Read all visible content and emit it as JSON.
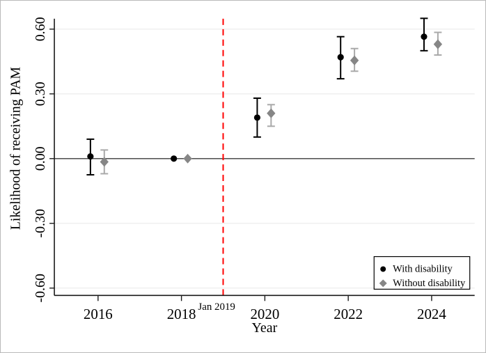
{
  "chart_data": {
    "type": "scatter",
    "title": "",
    "xlabel": "Year",
    "ylabel": "Likelihood of receiving PAM",
    "x_axis": {
      "title": "Year",
      "ticks": [
        {
          "year": 2016,
          "label": "2016"
        },
        {
          "year": 2018,
          "label": "2018"
        },
        {
          "year": 2020,
          "label": "2020"
        },
        {
          "year": 2022,
          "label": "2022"
        },
        {
          "year": 2024,
          "label": "2024"
        }
      ],
      "range": [
        2014.95,
        2025.05
      ]
    },
    "y_axis": {
      "title": "Likelihood of receiving PAM",
      "zero_line": true,
      "ticks": [
        {
          "value": 0.6,
          "label": "0.60"
        },
        {
          "value": 0.3,
          "label": "0.30"
        },
        {
          "value": 0.0,
          "label": "0.00"
        },
        {
          "value": -0.3,
          "label": "-0.30"
        },
        {
          "value": -0.6,
          "label": "-0.60"
        }
      ],
      "range": [
        -0.64,
        0.65
      ],
      "grid": true
    },
    "reference_line": {
      "year": 2019,
      "label": "Jan 2019",
      "color": "#ff0000",
      "style": "dashed"
    },
    "colors": {
      "gridline": "#e8e8e8",
      "axis": "#1a1a1a",
      "zero_line": "#3c3c3c",
      "background": "#ffffff"
    },
    "series": [
      {
        "name": "With disability",
        "marker": "circle",
        "color": "#000000",
        "error_color": "#000000",
        "points": [
          {
            "year": 2016,
            "value": 0.01,
            "ci_low": -0.075,
            "ci_high": 0.09
          },
          {
            "year": 2018,
            "value": 0.0,
            "ci_low": 0.0,
            "ci_high": 0.0
          },
          {
            "year": 2020,
            "value": 0.19,
            "ci_low": 0.1,
            "ci_high": 0.28
          },
          {
            "year": 2022,
            "value": 0.47,
            "ci_low": 0.37,
            "ci_high": 0.565
          },
          {
            "year": 2024,
            "value": 0.565,
            "ci_low": 0.5,
            "ci_high": 0.65
          }
        ]
      },
      {
        "name": "Without disability",
        "marker": "diamond",
        "color": "#868686",
        "error_color": "#a9a9a9",
        "points": [
          {
            "year": 2016,
            "value": -0.015,
            "ci_low": -0.07,
            "ci_high": 0.04
          },
          {
            "year": 2018,
            "value": 0.0,
            "ci_low": 0.0,
            "ci_high": 0.0
          },
          {
            "year": 2020,
            "value": 0.21,
            "ci_low": 0.15,
            "ci_high": 0.25
          },
          {
            "year": 2022,
            "value": 0.455,
            "ci_low": 0.405,
            "ci_high": 0.51
          },
          {
            "year": 2024,
            "value": 0.53,
            "ci_low": 0.48,
            "ci_high": 0.585
          }
        ]
      }
    ],
    "legend": {
      "position": "bottom-right",
      "border": true,
      "entries": [
        {
          "label": "With disability",
          "marker": "circle",
          "color": "#000000"
        },
        {
          "label": "Without disability",
          "marker": "diamond",
          "color": "#868686"
        }
      ]
    }
  }
}
